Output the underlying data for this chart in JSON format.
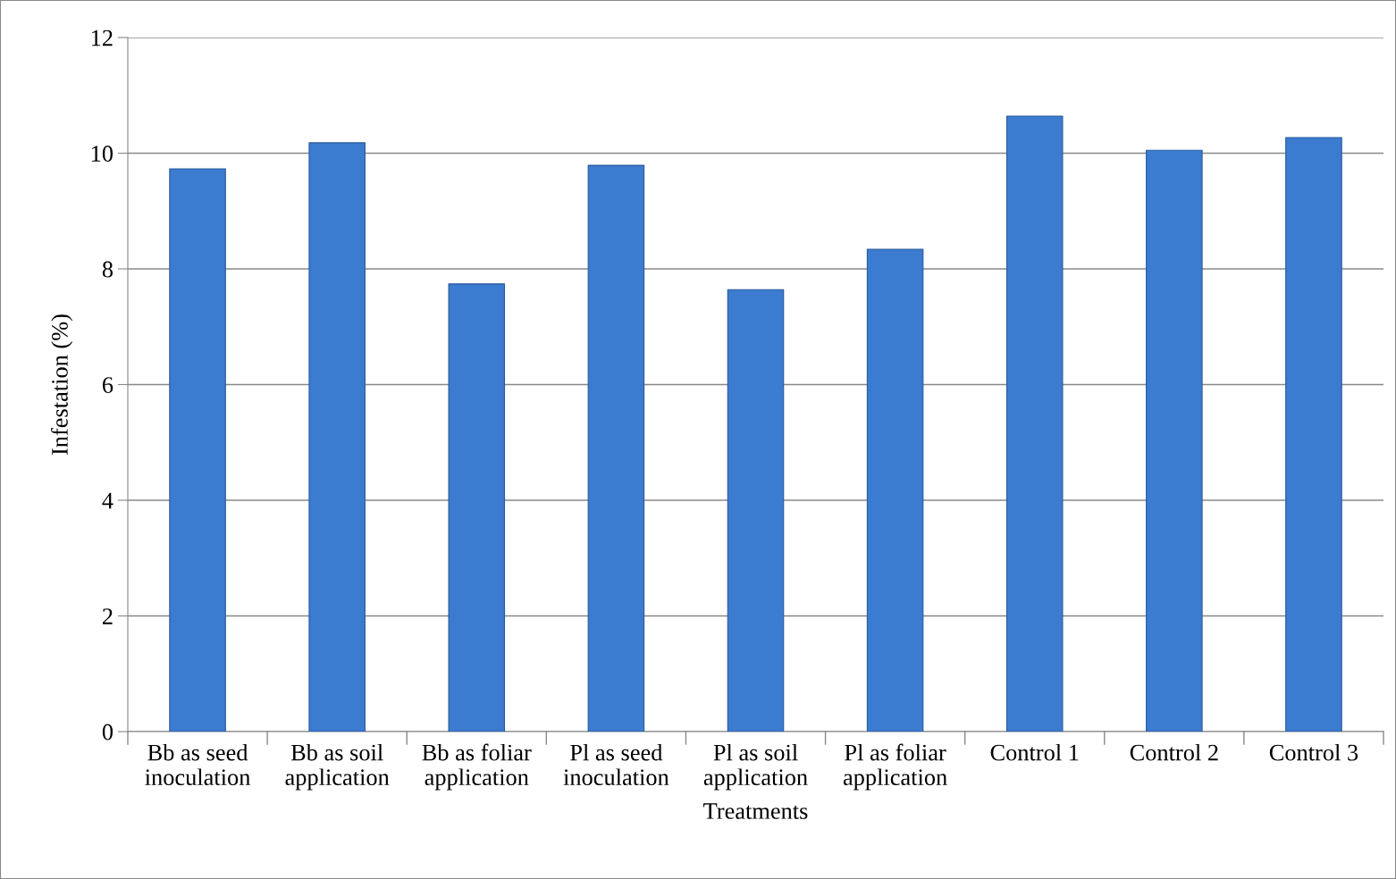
{
  "chart_data": {
    "type": "bar",
    "xlabel": "Treatments",
    "ylabel": "Infestation (%)",
    "categories": [
      "Bb as seed\ninoculation",
      "Bb as soil\napplication",
      "Bb as foliar\napplication",
      "Pl as seed\ninoculation",
      "Pl as soil\napplication",
      "Pl as foliar\napplication",
      "Control 1",
      "Control 2",
      "Control 3"
    ],
    "values": [
      9.73,
      10.18,
      7.74,
      9.79,
      7.64,
      8.34,
      10.64,
      10.05,
      10.27
    ],
    "color": "#3b7bd0",
    "ylim": [
      0,
      12
    ],
    "yticks": [
      0,
      2,
      4,
      6,
      8,
      10,
      12
    ],
    "grid": "y",
    "legend": false
  }
}
